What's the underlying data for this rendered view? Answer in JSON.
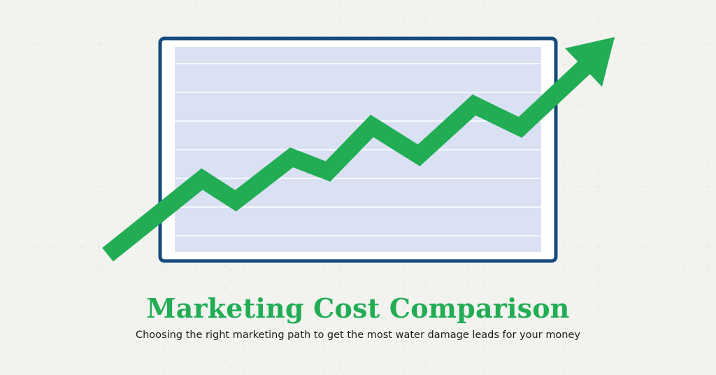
{
  "colors": {
    "background": "#f2f2ef",
    "frame_border": "#124a7c",
    "frame_fill": "#ffffff",
    "panel_fill": "#d9e1f2",
    "grid_line": "#ffffff",
    "accent_green": "#22ad55",
    "text_dark": "#1b1b1b"
  },
  "illustration": {
    "icon": "rising-trend-arrow-icon",
    "chart_frame_icon": "chart-panel-icon"
  },
  "title": "Marketing Cost Comparison",
  "subtitle": "Choosing the right marketing path to get the most water damage leads for your money"
}
